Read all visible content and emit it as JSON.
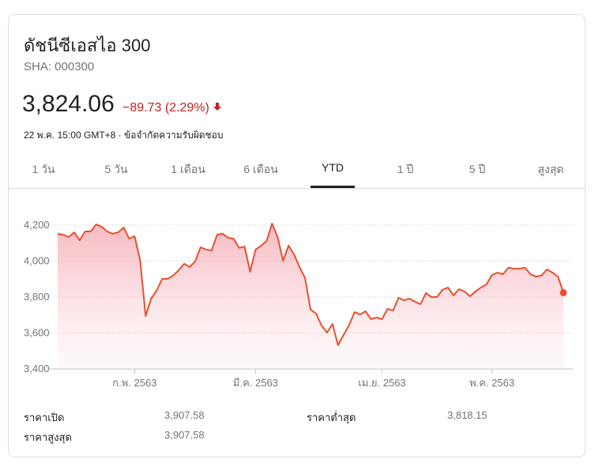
{
  "header": {
    "title": "ดัชนีซีเอสไอ 300",
    "ticker": "SHA: 000300",
    "price": "3,824.06",
    "change": "−89.73 (2.29%)",
    "timestamp": "22 พ.ค. 15:00 GMT+8 ·",
    "disclaimer": "ข้อจำกัดความรับผิดชอบ"
  },
  "tabs": {
    "items": [
      "1 วัน",
      "5 วัน",
      "1 เดือน",
      "6 เดือน",
      "YTD",
      "1 ปี",
      "5 ปี",
      "สูงสุด"
    ],
    "selected": 4
  },
  "chart_data": {
    "type": "line",
    "line_color": "#e8502d",
    "ylim": [
      3400,
      4300
    ],
    "yticks": [
      {
        "value": 3400,
        "label": "3,400"
      },
      {
        "value": 3600,
        "label": "3,600"
      },
      {
        "value": 3800,
        "label": "3,800"
      },
      {
        "value": 4000,
        "label": "4,000"
      },
      {
        "value": 4200,
        "label": "4,200"
      }
    ],
    "grid": true,
    "categories": [
      null,
      null,
      null,
      null,
      null,
      null,
      null,
      null,
      null,
      null,
      null,
      null,
      null,
      null,
      "ก.พ. 2563",
      null,
      null,
      null,
      null,
      null,
      null,
      null,
      null,
      null,
      null,
      null,
      null,
      null,
      null,
      null,
      null,
      null,
      null,
      null,
      null,
      null,
      "มี.ค. 2563",
      null,
      null,
      null,
      null,
      null,
      null,
      null,
      null,
      null,
      null,
      null,
      null,
      null,
      null,
      null,
      null,
      null,
      null,
      null,
      null,
      null,
      null,
      "เม.ย. 2563",
      null,
      null,
      null,
      null,
      null,
      null,
      null,
      null,
      null,
      null,
      null,
      null,
      null,
      null,
      null,
      null,
      null,
      null,
      null,
      "พ.ค. 2563",
      null,
      null,
      null,
      null,
      null,
      null,
      null,
      null,
      null,
      null,
      null,
      null,
      null
    ],
    "values": [
      4152,
      4147,
      4134,
      4160,
      4116,
      4165,
      4165,
      4204,
      4191,
      4165,
      4152,
      4160,
      4187,
      4125,
      4138,
      4002,
      3694,
      3791,
      3835,
      3901,
      3901,
      3919,
      3949,
      3985,
      3967,
      3998,
      4077,
      4064,
      4059,
      4147,
      4152,
      4130,
      4125,
      4073,
      4081,
      3941,
      4064,
      4086,
      4112,
      4209,
      4134,
      4002,
      4086,
      4037,
      3967,
      3905,
      3730,
      3708,
      3642,
      3602,
      3650,
      3532,
      3589,
      3642,
      3716,
      3703,
      3721,
      3677,
      3686,
      3677,
      3734,
      3725,
      3796,
      3782,
      3791,
      3774,
      3760,
      3822,
      3800,
      3800,
      3840,
      3853,
      3809,
      3844,
      3831,
      3804,
      3831,
      3853,
      3870,
      3923,
      3936,
      3927,
      3963,
      3958,
      3958,
      3963,
      3927,
      3914,
      3919,
      3954,
      3936,
      3914,
      3824.06
    ]
  },
  "stats": {
    "rows": [
      [
        {
          "label": "ราคาเปิด",
          "value": "3,907.58"
        },
        {
          "label": "ราคาต่ำสุด",
          "value": "3,818.15"
        }
      ],
      [
        {
          "label": "ราคาสูงสุด",
          "value": "3,907.58"
        }
      ]
    ]
  }
}
